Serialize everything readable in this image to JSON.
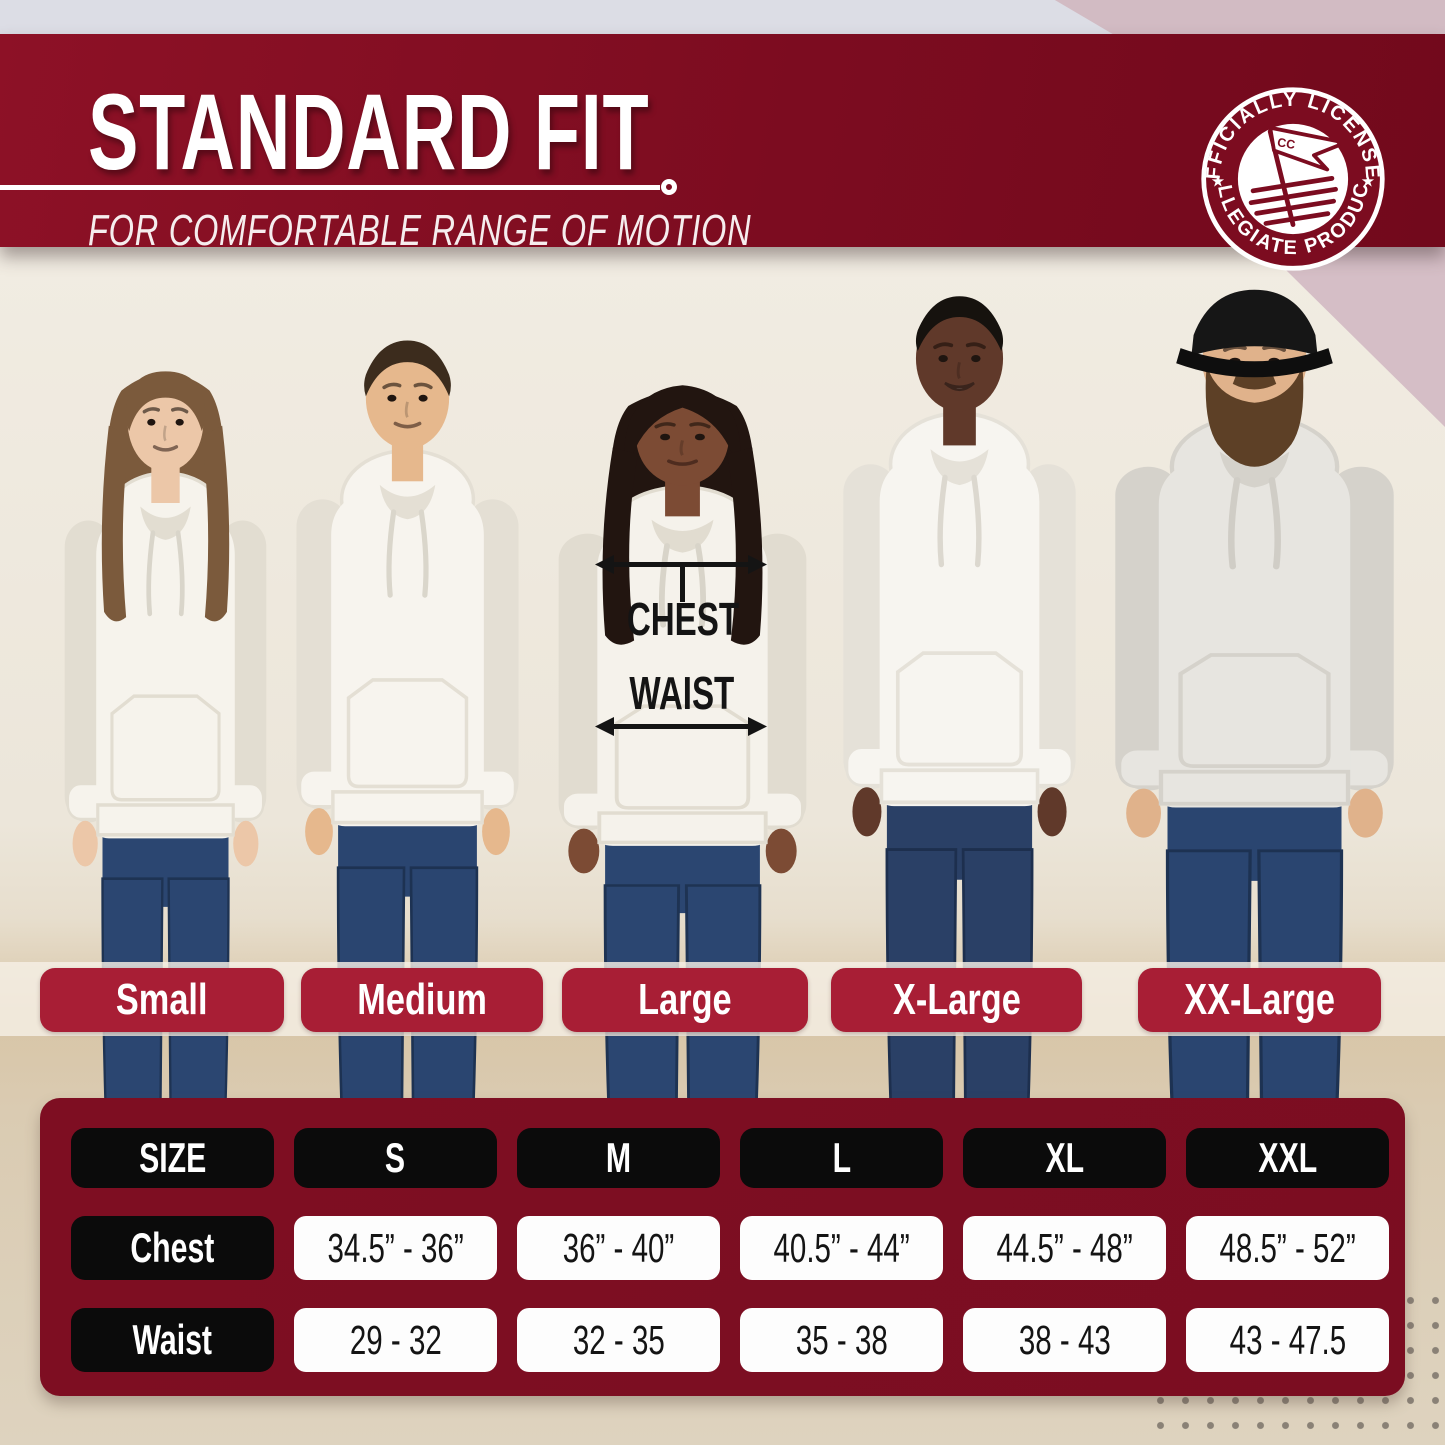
{
  "header": {
    "title": "STANDARD FIT",
    "subtitle": "FOR COMFORTABLE RANGE OF MOTION",
    "badge": {
      "top_text": "OFFICIALLY LICENSED",
      "bottom_text": "COLLEGIATE PRODUCTS",
      "flag_initials": "CC",
      "star_left": "★",
      "star_right": "★"
    }
  },
  "measurement_diagram": {
    "chest_label": "CHEST",
    "waist_label": "WAIST"
  },
  "size_labels": [
    "Small",
    "Medium",
    "Large",
    "X-Large",
    "XX-Large"
  ],
  "size_table": {
    "columns": [
      "SIZE",
      "S",
      "M",
      "L",
      "XL",
      "XXL"
    ],
    "rows": [
      {
        "label": "Chest",
        "values": [
          "34.5” - 36”",
          "36” - 40”",
          "40.5” - 44”",
          "44.5” - 48”",
          "48.5” - 52”"
        ]
      },
      {
        "label": "Waist",
        "values": [
          "29 - 32",
          "32 - 35",
          "35 - 38",
          "38 - 43",
          "43 - 47.5"
        ]
      }
    ]
  },
  "models": [
    {
      "size": "Small",
      "figure": "woman-long-brown-hair-bangs-white-hoodie"
    },
    {
      "size": "Medium",
      "figure": "man-short-dark-hair-white-hoodie"
    },
    {
      "size": "Large",
      "figure": "woman-long-dark-hair-white-hoodie-measured"
    },
    {
      "size": "X-Large",
      "figure": "man-short-hair-smiling-white-hoodie"
    },
    {
      "size": "XX-Large",
      "figure": "man-black-cap-beard-gray-hoodie"
    }
  ],
  "colors": {
    "banner_maroon": "#7c0c20",
    "table_maroon": "#7b0d21",
    "badge_crimson": "#a81e35",
    "pill_black": "#0b0b0b",
    "pill_white": "#fdfdfd",
    "backdrop_cream": "#ece6da",
    "backdrop_mauve": "#d5bec6",
    "denim_blue": "#2b4671",
    "dot_gray": "#8a8176"
  },
  "chart_data": {
    "type": "table",
    "title": "STANDARD FIT",
    "subtitle": "FOR COMFORTABLE RANGE OF MOTION",
    "columns": [
      "SIZE",
      "S",
      "M",
      "L",
      "XL",
      "XXL"
    ],
    "rows": [
      [
        "Chest",
        "34.5” - 36”",
        "36” - 40”",
        "40.5” - 44”",
        "44.5” - 48”",
        "48.5” - 52”"
      ],
      [
        "Waist",
        "29 - 32",
        "32 - 35",
        "35 - 38",
        "38 - 43",
        "43 - 47.5"
      ]
    ],
    "size_labels": [
      "Small",
      "Medium",
      "Large",
      "X-Large",
      "XX-Large"
    ]
  }
}
